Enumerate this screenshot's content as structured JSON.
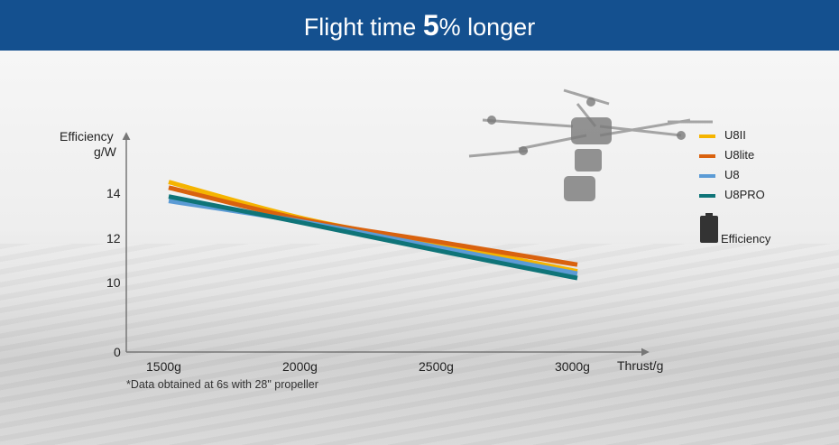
{
  "banner": {
    "prefix": "Flight time ",
    "highlight": "5",
    "suffix": "% longer"
  },
  "chart_data": {
    "type": "line",
    "ylabel_line1": "Efficiency",
    "ylabel_line2": "g/W",
    "xlabel": "Thrust/g",
    "x": [
      1500,
      2000,
      2500,
      3000
    ],
    "x_tick_labels": [
      "1500g",
      "2000g",
      "2500g",
      "3000g"
    ],
    "y_ticks": [
      0,
      10,
      12,
      14
    ],
    "series": [
      {
        "name": "U8II",
        "color": "#f5b400",
        "points": [
          [
            1500,
            14.5
          ],
          [
            2000,
            12.85
          ],
          [
            2500,
            11.7
          ],
          [
            3000,
            10.5
          ]
        ]
      },
      {
        "name": "U8lite",
        "color": "#d9620e",
        "points": [
          [
            1500,
            14.25
          ],
          [
            2000,
            12.8
          ],
          [
            2500,
            11.8
          ],
          [
            3000,
            10.8
          ]
        ]
      },
      {
        "name": "U8",
        "color": "#5b9bd5",
        "points": [
          [
            1500,
            13.65
          ],
          [
            2000,
            12.7
          ],
          [
            2500,
            11.55
          ],
          [
            3000,
            10.4
          ]
        ]
      },
      {
        "name": "U8PRO",
        "color": "#0f7478",
        "points": [
          [
            1500,
            13.85
          ],
          [
            2000,
            12.65
          ],
          [
            2500,
            11.4
          ],
          [
            3000,
            10.2
          ]
        ]
      }
    ],
    "legend_position": "right"
  },
  "battery_label": "Efficiency",
  "footnote": "*Data obtained at 6s with 28\"  propeller",
  "icons": {
    "battery": "battery-icon",
    "drone": "drone-photo"
  }
}
